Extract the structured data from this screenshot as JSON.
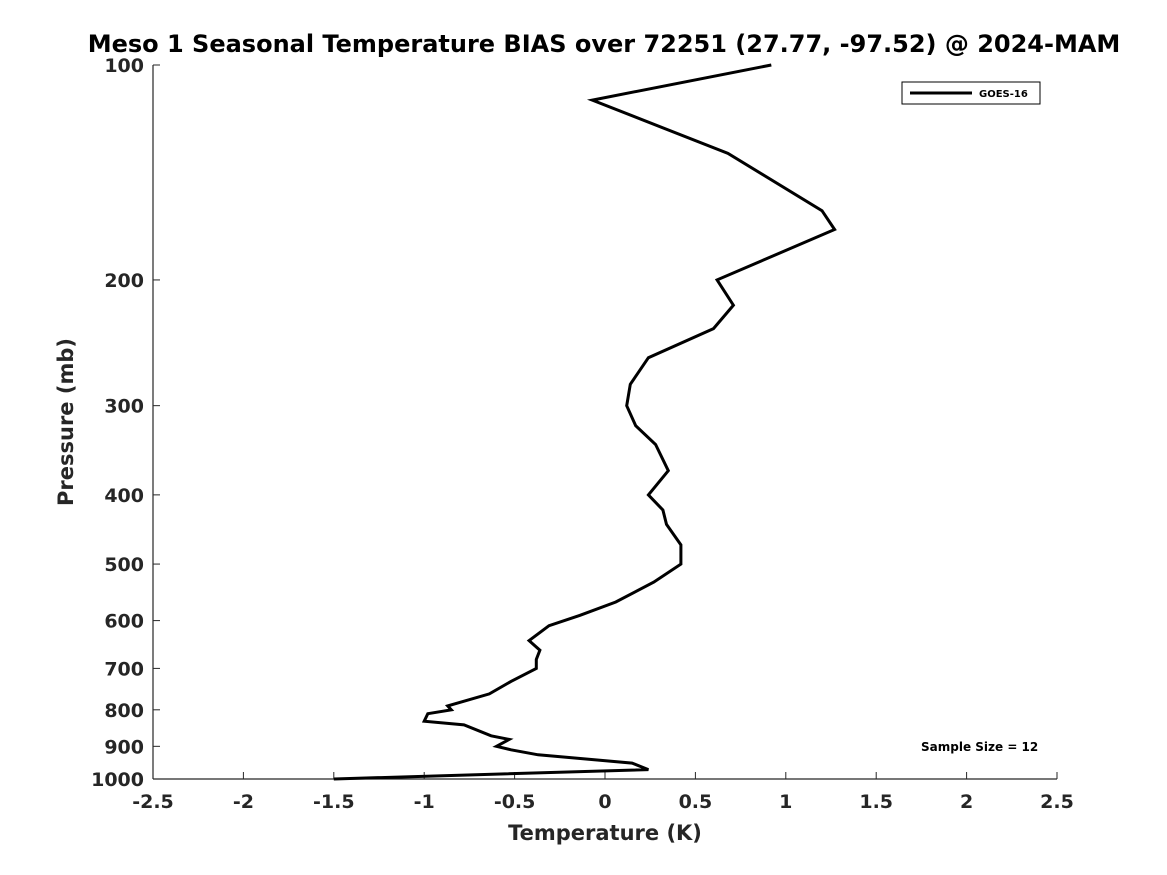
{
  "chart_data": {
    "type": "line",
    "title": "Meso 1 Seasonal Temperature BIAS over 72251 (27.77, -97.52) @ 2024-MAM",
    "xlabel": "Temperature (K)",
    "ylabel": "Pressure (mb)",
    "xlim": [
      -2.5,
      2.5
    ],
    "ylim": [
      100,
      1000
    ],
    "y_scale": "log",
    "y_reversed": true,
    "x_ticks": [
      "-2.5",
      "-2",
      "-1.5",
      "-1",
      "-0.5",
      "0",
      "0.5",
      "1",
      "1.5",
      "2",
      "2.5"
    ],
    "y_ticks": [
      "100",
      "200",
      "300",
      "400",
      "500",
      "600",
      "700",
      "800",
      "900",
      "1000"
    ],
    "legend_position": "top-right",
    "annotation": "Sample Size = 12",
    "line_color": "#000000",
    "series": [
      {
        "name": "GOES-16",
        "x": [
          0.92,
          -0.07,
          0.68,
          1.2,
          1.27,
          0.62,
          0.71,
          0.6,
          0.24,
          0.14,
          0.12,
          0.17,
          0.28,
          0.35,
          0.24,
          0.32,
          0.34,
          0.42,
          0.42,
          0.27,
          0.06,
          -0.14,
          -0.31,
          -0.42,
          -0.36,
          -0.38,
          -0.38,
          -0.52,
          -0.64,
          -0.87,
          -0.85,
          -0.98,
          -1.0,
          -0.78,
          -0.63,
          -0.53,
          -0.6,
          -0.52,
          -0.37,
          0.15,
          0.24,
          -1.5
        ],
        "y": [
          100,
          112,
          133,
          160,
          170,
          200,
          217,
          234,
          257,
          280,
          300,
          320,
          340,
          370,
          400,
          420,
          440,
          470,
          500,
          530,
          565,
          590,
          610,
          640,
          660,
          680,
          700,
          730,
          760,
          790,
          800,
          810,
          830,
          840,
          870,
          880,
          900,
          910,
          925,
          950,
          970,
          1000
        ]
      }
    ]
  }
}
